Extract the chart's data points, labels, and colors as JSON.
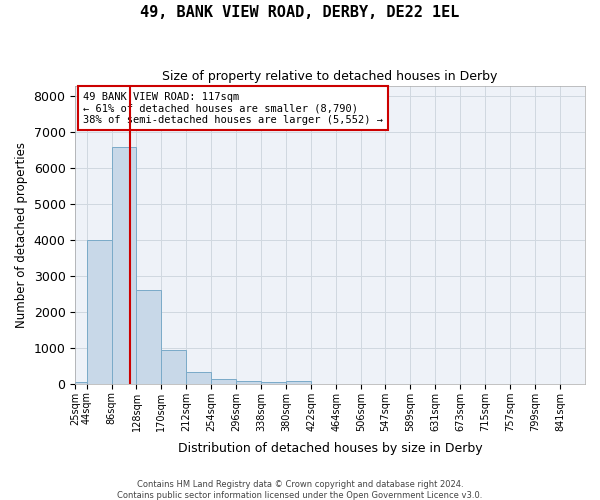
{
  "title": "49, BANK VIEW ROAD, DERBY, DE22 1EL",
  "subtitle": "Size of property relative to detached houses in Derby",
  "xlabel": "Distribution of detached houses by size in Derby",
  "ylabel": "Number of detached properties",
  "footer_line1": "Contains HM Land Registry data © Crown copyright and database right 2024.",
  "footer_line2": "Contains public sector information licensed under the Open Government Licence v3.0.",
  "bin_labels": [
    "25sqm",
    "44sqm",
    "86sqm",
    "128sqm",
    "170sqm",
    "212sqm",
    "254sqm",
    "296sqm",
    "338sqm",
    "380sqm",
    "422sqm",
    "464sqm",
    "506sqm",
    "547sqm",
    "589sqm",
    "631sqm",
    "673sqm",
    "715sqm",
    "757sqm",
    "799sqm",
    "841sqm"
  ],
  "bar_values": [
    50,
    4000,
    6600,
    2600,
    950,
    320,
    130,
    80,
    60,
    70,
    0,
    0,
    0,
    0,
    0,
    0,
    0,
    0,
    0,
    0,
    0
  ],
  "bar_color": "#c8d8e8",
  "bar_edge_color": "#7aaac8",
  "grid_color": "#d0d8e0",
  "background_color": "#eef2f8",
  "property_line_x": 117,
  "property_line_color": "#cc0000",
  "annotation_line1": "49 BANK VIEW ROAD: 117sqm",
  "annotation_line2": "← 61% of detached houses are smaller (8,790)",
  "annotation_line3": "38% of semi-detached houses are larger (5,552) →",
  "annotation_box_color": "white",
  "annotation_box_edge_color": "#cc0000",
  "ylim": [
    0,
    8300
  ],
  "yticks": [
    0,
    1000,
    2000,
    3000,
    4000,
    5000,
    6000,
    7000,
    8000
  ],
  "bin_edges": [
    25,
    44,
    86,
    128,
    170,
    212,
    254,
    296,
    338,
    380,
    422,
    464,
    506,
    547,
    589,
    631,
    673,
    715,
    757,
    799,
    841,
    883
  ]
}
